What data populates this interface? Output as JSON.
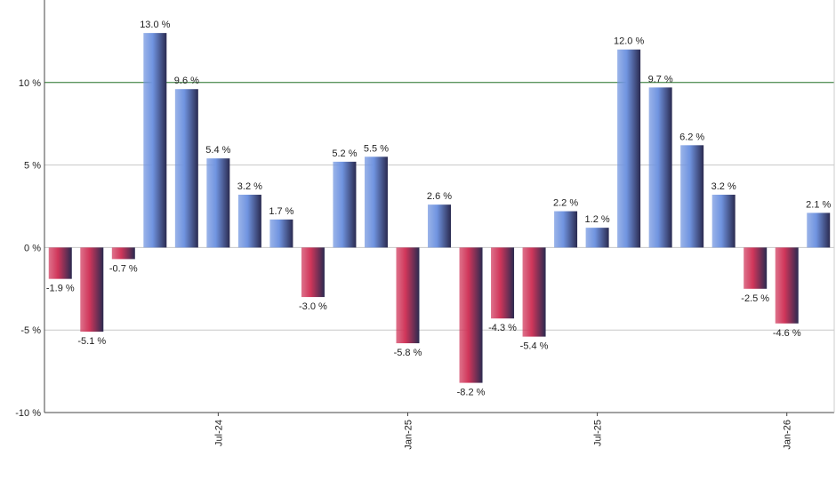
{
  "chart_data": {
    "type": "bar",
    "categories": [
      null,
      null,
      null,
      null,
      null,
      "Jul-24",
      null,
      null,
      null,
      null,
      null,
      "Jan-25",
      null,
      null,
      null,
      null,
      null,
      "Jul-25",
      null,
      null,
      null,
      null,
      null,
      "Jan-26",
      null
    ],
    "values": [
      -1.9,
      -5.1,
      -0.7,
      13.0,
      9.6,
      5.4,
      3.2,
      1.7,
      -3.0,
      5.2,
      5.5,
      -5.8,
      2.6,
      -8.2,
      -4.3,
      -5.4,
      2.2,
      1.2,
      12.0,
      9.7,
      6.2,
      3.2,
      -2.5,
      -4.6,
      2.1
    ],
    "value_labels": [
      "-1.9 %",
      "-5.1 %",
      "-0.7 %",
      "13.0 %",
      "9.6 %",
      "5.4 %",
      "3.2 %",
      "1.7 %",
      "-3.0 %",
      "5.2 %",
      "5.5 %",
      "-5.8 %",
      "2.6 %",
      "-8.2 %",
      "-4.3 %",
      "-5.4 %",
      "2.2 %",
      "1.2 %",
      "12.0 %",
      "9.7 %",
      "6.2 %",
      "3.2 %",
      "-2.5 %",
      "-4.6 %",
      "2.1 %"
    ],
    "positive_color": "#7094e0",
    "negative_color": "#d0365a",
    "ylim": [
      -10,
      15
    ],
    "yticks": [
      {
        "value": -10,
        "label": "-10 %"
      },
      {
        "value": -5,
        "label": "-5 %"
      },
      {
        "value": 0,
        "label": "0 %"
      },
      {
        "value": 5,
        "label": "5 %"
      },
      {
        "value": 10,
        "label": "10 %"
      }
    ],
    "reference_line": 10,
    "reference_color": "#2e7d32",
    "grid": true
  }
}
